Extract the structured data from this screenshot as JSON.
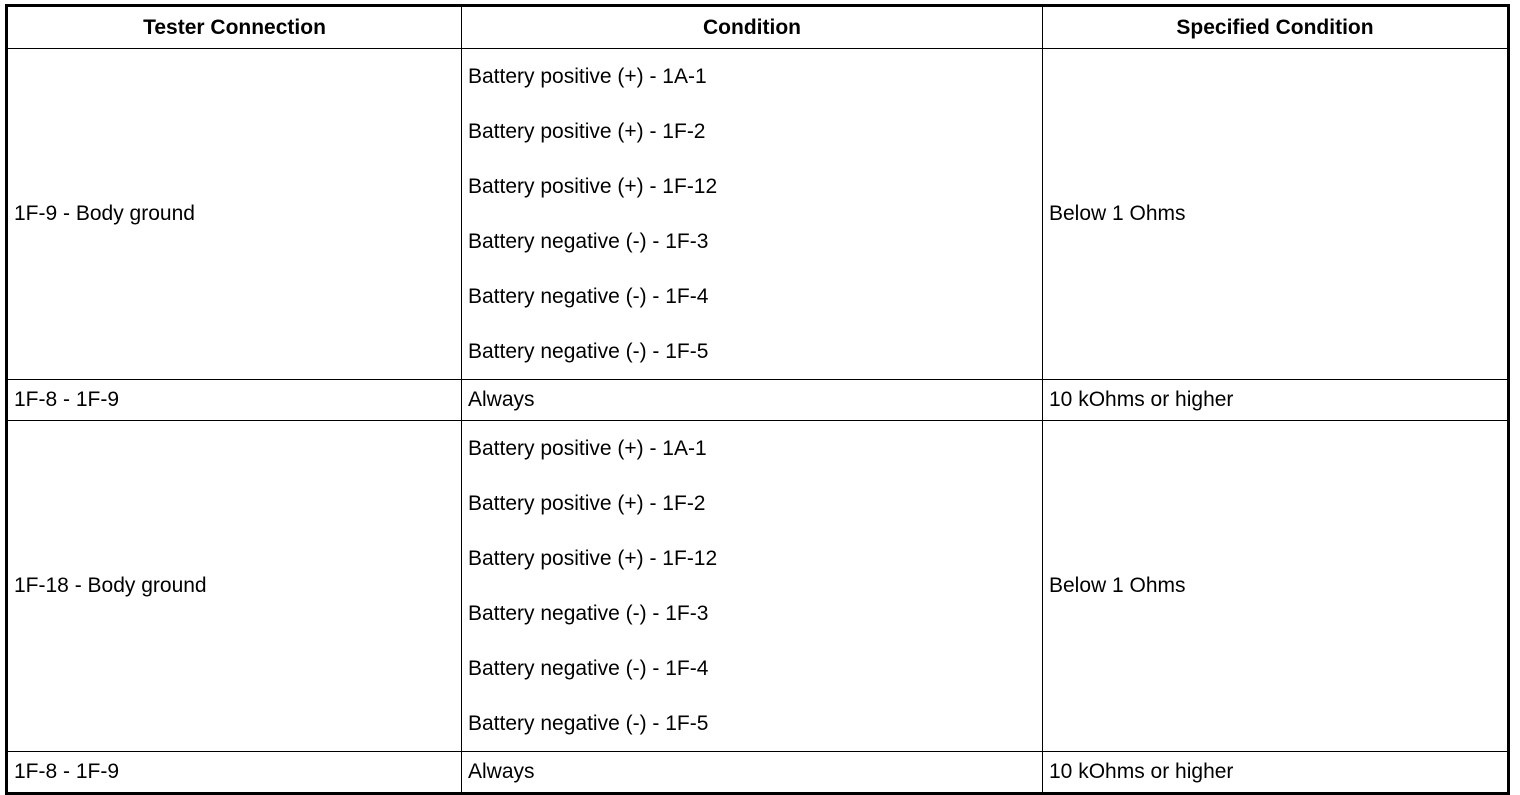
{
  "table": {
    "headers": [
      "Tester Connection",
      "Condition",
      "Specified Condition"
    ],
    "rows": [
      {
        "tester_connection": "1F-9 - Body ground",
        "conditions": [
          "Battery positive (+) - 1A-1",
          "Battery positive (+) - 1F-2",
          "Battery positive (+) - 1F-12",
          "Battery negative (-) - 1F-3",
          "Battery negative (-) - 1F-4",
          "Battery negative (-) - 1F-5"
        ],
        "specified_condition": "Below 1 Ohms"
      },
      {
        "tester_connection": "1F-8 - 1F-9",
        "conditions": [
          "Always"
        ],
        "specified_condition": "10 kOhms or higher"
      },
      {
        "tester_connection": "1F-18 - Body ground",
        "conditions": [
          "Battery positive (+) - 1A-1",
          "Battery positive (+) - 1F-2",
          "Battery positive (+) - 1F-12",
          "Battery negative (-) - 1F-3",
          "Battery negative (-) - 1F-4",
          "Battery negative (-) - 1F-5"
        ],
        "specified_condition": "Below 1 Ohms"
      },
      {
        "tester_connection": "1F-8 - 1F-9",
        "conditions": [
          "Always"
        ],
        "specified_condition": "10 kOhms or higher"
      }
    ]
  }
}
